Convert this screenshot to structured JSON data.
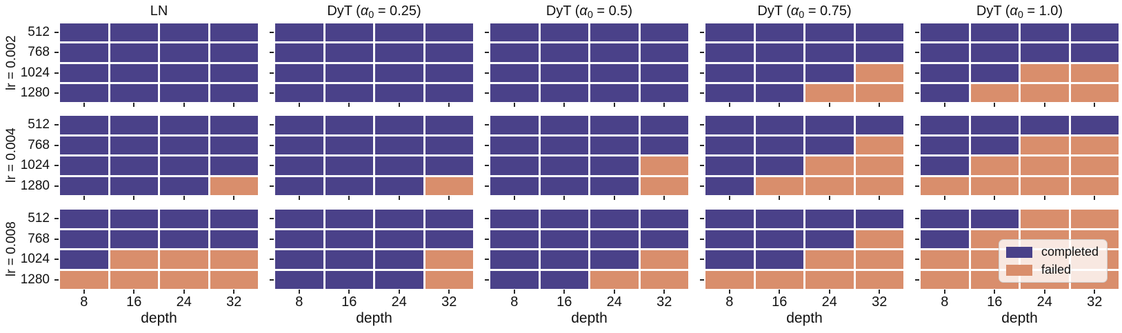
{
  "chart_data": {
    "type": "heatmap",
    "grid_rows": 3,
    "grid_cols": 5,
    "col_titles": [
      "LN",
      "DyT (α₀ = 0.25)",
      "DyT (α₀ = 0.5)",
      "DyT (α₀ = 0.75)",
      "DyT (α₀ = 1.0)"
    ],
    "row_labels": [
      "lr = 0.002",
      "lr = 0.004",
      "lr = 0.008"
    ],
    "x_ticks": [
      "8",
      "16",
      "24",
      "32"
    ],
    "xlabel": "depth",
    "y_ticks": [
      "512",
      "768",
      "1024",
      "1280"
    ],
    "colors": {
      "completed": "#4a4189",
      "failed": "#d98e6c"
    },
    "legend": {
      "position": "inside bottom-right panel",
      "entries": [
        {
          "label": "completed",
          "value": "c",
          "color": "#4a4189"
        },
        {
          "label": "failed",
          "value": "f",
          "color": "#d98e6c"
        }
      ]
    },
    "cells_note": "panels[row][col] -> 4 strings top→bottom = width 512,768,1024,1280; chars left→right = depth 8,16,24,32; c=completed, f=failed",
    "panels": [
      [
        [
          "cccc",
          "cccc",
          "cccc",
          "cccc"
        ],
        [
          "cccc",
          "cccc",
          "cccc",
          "cccc"
        ],
        [
          "cccc",
          "cccc",
          "cccc",
          "cccc"
        ],
        [
          "cccc",
          "cccc",
          "cccf",
          "ccff"
        ],
        [
          "cccc",
          "cccc",
          "ccff",
          "cfff"
        ]
      ],
      [
        [
          "cccc",
          "cccc",
          "cccc",
          "cccf"
        ],
        [
          "cccc",
          "cccc",
          "cccc",
          "cccf"
        ],
        [
          "cccc",
          "cccc",
          "cccf",
          "cccf"
        ],
        [
          "cccc",
          "cccf",
          "ccff",
          "cfff"
        ],
        [
          "cccc",
          "ccff",
          "cfff",
          "ffff"
        ]
      ],
      [
        [
          "cccc",
          "cccc",
          "cfff",
          "ffff"
        ],
        [
          "cccc",
          "cccc",
          "cccf",
          "cccf"
        ],
        [
          "cccc",
          "cccc",
          "cccf",
          "ccff"
        ],
        [
          "cccc",
          "cccf",
          "ccff",
          "ffff"
        ],
        [
          "ccff",
          "cfff",
          "ffff",
          "ffff"
        ]
      ]
    ]
  }
}
